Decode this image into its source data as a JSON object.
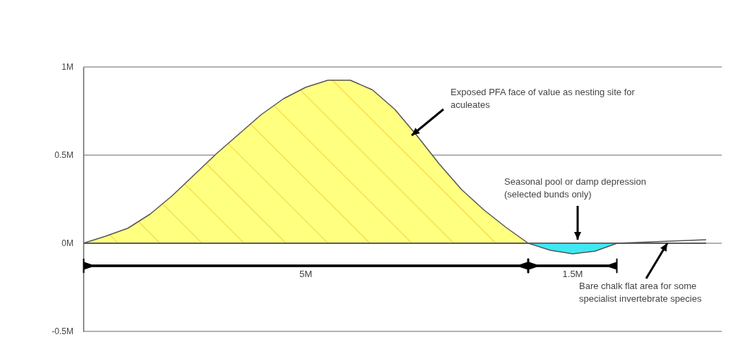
{
  "chart_data": {
    "type": "area",
    "ylim": [
      -0.5,
      1
    ],
    "categories": [
      null,
      null,
      null,
      null,
      null,
      null,
      null,
      null,
      null,
      null,
      null,
      null,
      null,
      null,
      null,
      null,
      null,
      null,
      null,
      null,
      null,
      null,
      null,
      null,
      null,
      null,
      null,
      null,
      null
    ],
    "yticks": [
      {
        "value": 1,
        "label": "1M"
      },
      {
        "value": 0.5,
        "label": "0.5M"
      },
      {
        "value": 0,
        "label": "0M"
      },
      {
        "value": -0.5,
        "label": "-0.5M"
      }
    ],
    "grid": "y",
    "tick_labels": "y",
    "line_style": "solid",
    "marker": "none",
    "series": [
      {
        "color": "#ffff80",
        "values": [
          0,
          0.04,
          0.085,
          0.165,
          0.27,
          0.39,
          0.51,
          0.62,
          0.73,
          0.82,
          0.885,
          0.925,
          0.925,
          0.87,
          0.76,
          0.61,
          0.45,
          0.305,
          0.19,
          0.09,
          0,
          0,
          0,
          0,
          0,
          0,
          0,
          0,
          0
        ]
      },
      {
        "color": "#40e8f4",
        "values": [
          0,
          0,
          0,
          0,
          0,
          0,
          0,
          0,
          0,
          0,
          0,
          0,
          0,
          0,
          0,
          0,
          0,
          0,
          0,
          0,
          0,
          -0.04,
          -0.06,
          -0.045,
          0,
          0,
          0,
          0,
          0
        ]
      },
      {
        "type": "line",
        "color": "#555555",
        "values": [
          0,
          0,
          0,
          0,
          0,
          0,
          0,
          0,
          0,
          0,
          0,
          0,
          0,
          0,
          0,
          0,
          0,
          0,
          0,
          0,
          0,
          0,
          0,
          0,
          0,
          0.005,
          0.01,
          0.015,
          0.02
        ]
      }
    ],
    "annotations": [
      "Exposed PFA face of value as nesting site for aculeates",
      "Seasonal pool or damp depression (selected bunds only)",
      "Bare chalk flat area for some specialist invertebrate species",
      "5M",
      "1.5M"
    ]
  }
}
